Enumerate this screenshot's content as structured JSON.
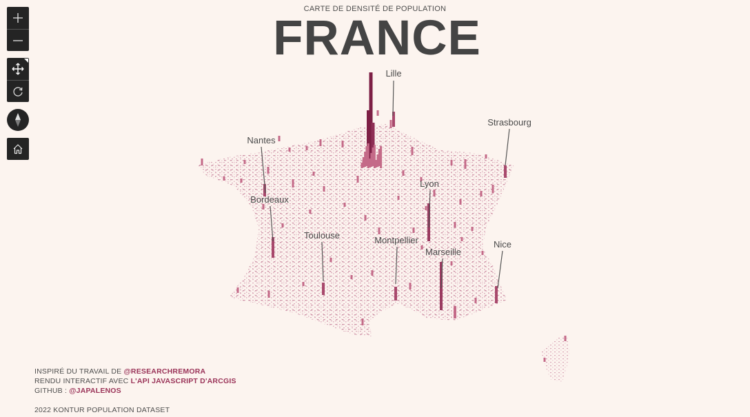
{
  "header": {
    "subtitle": "CARTE DE DENSITÉ DE POPULATION",
    "title": "FRANCE"
  },
  "controls": {
    "zoom_in": "zoom-in-icon",
    "zoom_out": "zoom-out-icon",
    "pan": "pan-icon",
    "rotate": "rotate-icon",
    "compass": "compass-icon",
    "home": "home-icon"
  },
  "colors": {
    "background": "#fcf4ef",
    "spike": "#c46a88",
    "spike_dark": "#7d1f45",
    "link": "#9a3358"
  },
  "map": {
    "cities": [
      {
        "name": "Lille"
      },
      {
        "name": "Strasbourg"
      },
      {
        "name": "Nantes"
      },
      {
        "name": "Lyon"
      },
      {
        "name": "Bordeaux"
      },
      {
        "name": "Toulouse"
      },
      {
        "name": "Montpellier"
      },
      {
        "name": "Marseille"
      },
      {
        "name": "Nice"
      }
    ]
  },
  "credits": {
    "line1_prefix": "INSPIRÉ DU TRAVAIL DE ",
    "line1_link": "@RESEARCHREMORA",
    "line2_prefix": "RENDU INTERACTIF AVEC ",
    "line2_link": "L'API JAVASCRIPT D'ARCGIS",
    "line3_prefix": "GITHUB : ",
    "line3_link": "@JAPALENOS",
    "dataset": "2022 KONTUR POPULATION DATASET"
  }
}
